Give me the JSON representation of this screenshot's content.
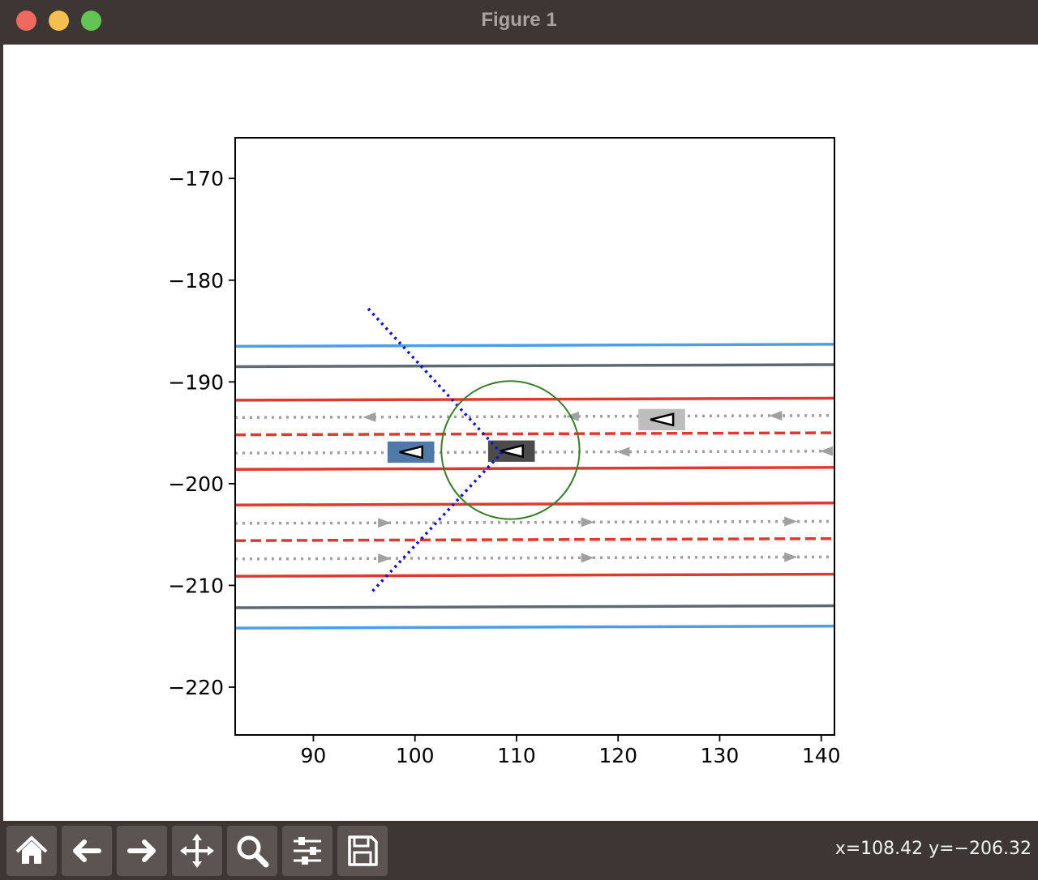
{
  "window": {
    "title": "Figure 1",
    "controls": [
      "close",
      "minimize",
      "zoom"
    ]
  },
  "toolbar": {
    "buttons": [
      {
        "name": "home",
        "icon": "home-icon"
      },
      {
        "name": "back",
        "icon": "arrow-left-icon"
      },
      {
        "name": "forward",
        "icon": "arrow-right-icon"
      },
      {
        "name": "pan",
        "icon": "move-icon"
      },
      {
        "name": "zoom",
        "icon": "magnifier-icon"
      },
      {
        "name": "configure-subplots",
        "icon": "sliders-icon"
      },
      {
        "name": "save",
        "icon": "floppy-disk-icon"
      }
    ],
    "coords_text": "x=108.42 y=−206.32"
  },
  "chart_data": {
    "type": "line",
    "title": "",
    "xlabel": "",
    "ylabel": "",
    "xlim": [
      82.3,
      141.3
    ],
    "ylim": [
      -224.7,
      -166.0
    ],
    "xticks": [
      90,
      100,
      110,
      120,
      130,
      140
    ],
    "yticks": [
      -170,
      -180,
      -190,
      -200,
      -210,
      -220
    ],
    "xtick_labels": [
      "90",
      "100",
      "110",
      "120",
      "130",
      "140"
    ],
    "ytick_labels": [
      "−170",
      "−180",
      "−190",
      "−200",
      "−210",
      "−220"
    ],
    "grid": false,
    "lines": [
      {
        "role": "outer-boundary",
        "color": "#4a9fe8",
        "style": "solid",
        "x": [
          82.3,
          141.3
        ],
        "y": [
          -186.5,
          -186.3
        ]
      },
      {
        "role": "road-edge",
        "color": "#5f6a70",
        "style": "solid",
        "x": [
          82.3,
          141.3
        ],
        "y": [
          -188.5,
          -188.3
        ]
      },
      {
        "role": "lane-boundary",
        "color": "#e03a2e",
        "style": "solid",
        "x": [
          82.3,
          141.3
        ],
        "y": [
          -191.8,
          -191.6
        ]
      },
      {
        "role": "lane-divider",
        "color": "#e03a2e",
        "style": "dashed",
        "x": [
          82.3,
          141.3
        ],
        "y": [
          -195.2,
          -195.0
        ]
      },
      {
        "role": "lane-boundary",
        "color": "#e03a2e",
        "style": "solid",
        "x": [
          82.3,
          141.3
        ],
        "y": [
          -198.6,
          -198.4
        ]
      },
      {
        "role": "lane-boundary",
        "color": "#e03a2e",
        "style": "solid",
        "x": [
          82.3,
          141.3
        ],
        "y": [
          -202.1,
          -201.9
        ]
      },
      {
        "role": "lane-divider",
        "color": "#e03a2e",
        "style": "dashed",
        "x": [
          82.3,
          141.3
        ],
        "y": [
          -205.6,
          -205.4
        ]
      },
      {
        "role": "lane-boundary",
        "color": "#e03a2e",
        "style": "solid",
        "x": [
          82.3,
          141.3
        ],
        "y": [
          -209.1,
          -208.9
        ]
      },
      {
        "role": "road-edge",
        "color": "#5f6a70",
        "style": "solid",
        "x": [
          82.3,
          141.3
        ],
        "y": [
          -212.2,
          -212.0
        ]
      },
      {
        "role": "outer-boundary",
        "color": "#4a9fe8",
        "style": "solid",
        "x": [
          82.3,
          141.3
        ],
        "y": [
          -214.2,
          -214.0
        ]
      }
    ],
    "centerlines": [
      {
        "color": "#a0a0a0",
        "direction": "left",
        "x": [
          82.3,
          141.3
        ],
        "y": [
          -193.5,
          -193.3
        ],
        "arrows_x": [
          95.5,
          115.5,
          135.5
        ]
      },
      {
        "color": "#a0a0a0",
        "direction": "left",
        "x": [
          82.3,
          141.3
        ],
        "y": [
          -197.0,
          -196.8
        ],
        "arrows_x": [
          100.0,
          120.5,
          140.5
        ]
      },
      {
        "color": "#a0a0a0",
        "direction": "right",
        "x": [
          82.3,
          141.3
        ],
        "y": [
          -203.9,
          -203.7
        ],
        "arrows_x": [
          97.0,
          117.0,
          137.0
        ]
      },
      {
        "color": "#a0a0a0",
        "direction": "right",
        "x": [
          82.3,
          141.3
        ],
        "y": [
          -207.4,
          -207.2
        ],
        "arrows_x": [
          97.0,
          117.0,
          137.0
        ]
      }
    ],
    "crosswalk_line": {
      "color": "#1010d0",
      "style": "dotted",
      "x": [
        95.4,
        108.5,
        95.6
      ],
      "y": [
        -182.8,
        -197.0,
        -210.8
      ]
    },
    "circle": {
      "color": "#3a7d2a",
      "center": [
        109.4,
        -196.7
      ],
      "radius": 6.8
    },
    "vehicles": [
      {
        "color": "#4f7aa8",
        "center": [
          99.6,
          -196.9
        ],
        "length": 4.6,
        "width": 2.0,
        "heading": "left"
      },
      {
        "color": "#4b4b4b",
        "center": [
          109.5,
          -196.8
        ],
        "length": 4.6,
        "width": 2.0,
        "heading": "left"
      },
      {
        "color": "#bdbdbd",
        "center": [
          124.3,
          -193.7
        ],
        "length": 4.6,
        "width": 2.0,
        "heading": "left"
      }
    ]
  }
}
